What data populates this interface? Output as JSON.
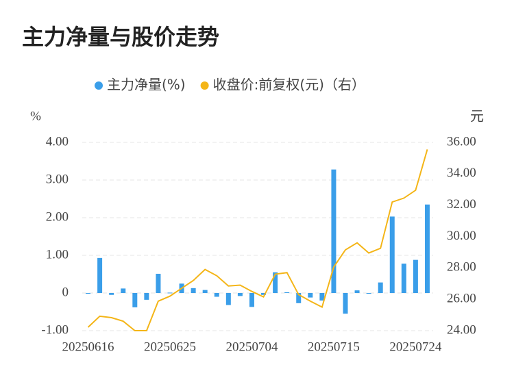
{
  "chart_data": {
    "type": "bar-line",
    "title": "主力净量与股价走势",
    "ylabel": "%",
    "y2label": "元",
    "categories": [
      "20250616",
      null,
      null,
      null,
      null,
      null,
      null,
      "20250625",
      null,
      null,
      null,
      null,
      null,
      null,
      "20250704",
      null,
      null,
      null,
      null,
      null,
      null,
      "20250715",
      null,
      null,
      null,
      null,
      null,
      null,
      "20250724",
      null
    ],
    "series": [
      {
        "name": "主力净量(%)",
        "type": "bar",
        "color": "#3a9ee9",
        "values": [
          -0.02,
          0.93,
          -0.05,
          0.12,
          -0.38,
          -0.18,
          0.51,
          0.01,
          0.25,
          0.13,
          0.08,
          -0.1,
          -0.32,
          -0.08,
          -0.37,
          -0.05,
          0.55,
          0.02,
          -0.27,
          -0.12,
          -0.2,
          3.28,
          -0.55,
          0.07,
          -0.02,
          0.28,
          2.03,
          0.78,
          0.88,
          2.35
        ]
      },
      {
        "name": "收盘价:前复权(元)（右）",
        "type": "line",
        "axis": "y2",
        "color": "#f4b517",
        "values": [
          24.22,
          24.92,
          24.83,
          24.6,
          24.0,
          24.0,
          25.88,
          26.2,
          26.7,
          27.2,
          27.9,
          27.5,
          26.85,
          26.9,
          26.5,
          26.15,
          27.6,
          27.7,
          26.3,
          25.88,
          25.5,
          28.05,
          29.15,
          29.6,
          28.95,
          29.25,
          32.2,
          32.45,
          32.95,
          35.55
        ]
      }
    ],
    "ylim": [
      -1,
      4
    ],
    "yticks": [
      {
        "value": -1,
        "label": "-1.00"
      },
      0,
      {
        "value": 1,
        "label": "1.00"
      },
      {
        "value": 2,
        "label": "2.00"
      },
      {
        "value": 3,
        "label": "3.00"
      },
      {
        "value": 4,
        "label": "4.00"
      }
    ],
    "y2lim": [
      24,
      36
    ],
    "y2ticks": [
      {
        "value": 24,
        "label": "24.00"
      },
      {
        "value": 26,
        "label": "26.00"
      },
      {
        "value": 28,
        "label": "28.00"
      },
      {
        "value": 30,
        "label": "30.00"
      },
      {
        "value": 32,
        "label": "32.00"
      },
      {
        "value": 34,
        "label": "34.00"
      },
      {
        "value": 36,
        "label": "36.00"
      }
    ],
    "grid": true,
    "legend": "top"
  }
}
